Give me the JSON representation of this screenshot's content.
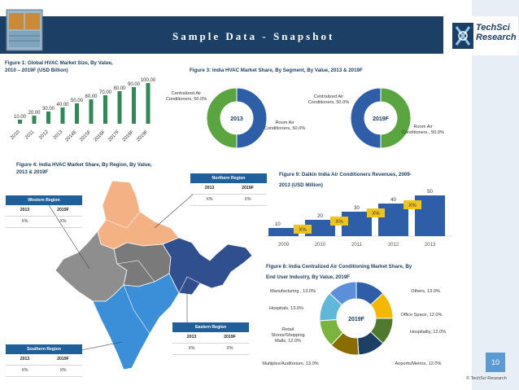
{
  "header": {
    "title": "Sample Data - Snapshot"
  },
  "logo": {
    "line1": "TechSci",
    "line2": "Research"
  },
  "fig1": {
    "title_line1": "Figure 1: Global HVAC Market Size, By Value,",
    "title_line2": "2010 – 2019F (USD Billion)"
  },
  "fig3": {
    "title": "Figure 3: India HVAC Market Share, By Segment, By Value, 2013 & 2019F",
    "pie2013": {
      "center": "2013",
      "label_a": "Centralized Air Conditioners, 50.0%",
      "label_b": "Room Air Conditioners, 50.0%"
    },
    "pie2019": {
      "center": "2019F",
      "label_a": "Centralized Air Conditioners, 50.0%",
      "label_b": "Room Air Conditioners , 50.0%"
    }
  },
  "fig4": {
    "title_line1": "Figure 4: India HVAC Market Share, By Region, By Value,",
    "title_line2": "2013 & 2019F",
    "regions": {
      "northern": {
        "name": "Northern Region",
        "y1": "2013",
        "y2": "2019F",
        "v1": "X%",
        "v2": "X%"
      },
      "western": {
        "name": "Western Region",
        "y1": "2013",
        "y2": "2019F",
        "v1": "X%",
        "v2": "X%"
      },
      "eastern": {
        "name": "Eastern Region",
        "y1": "2013",
        "y2": "2019F",
        "v1": "X%",
        "v2": "X%"
      },
      "southern": {
        "name": "Southern Region",
        "y1": "2013",
        "y2": "2019F",
        "v1": "X%",
        "v2": "X%"
      }
    }
  },
  "fig9": {
    "title_line1": "Figure 9: Daikin India Air Conditioners Revenues, 2009-",
    "title_line2": "2013 (USD Million)"
  },
  "fig8": {
    "title_line1": "Figure 8: India Centralized Air Conditioning Market Share, By",
    "title_line2": "End User Industry, By Value, 2019F",
    "center": "2019F",
    "labels": {
      "manufacturing": "Manufacturing , 13.0%",
      "others": "Others, 13.0%",
      "hospitals": "Hospitals, 13.0%",
      "office": "Office Space, 12.0%",
      "retail": "Retail Stores/Shopping Malls, 12.0%",
      "hospitality": "Hospitality, 12.0%",
      "multiplex": "Multiplex/Auditorium, 13.0%",
      "airports": "Airports/Metros, 12.0%"
    }
  },
  "footer": {
    "page": "10",
    "copyright": "© TechSci Research"
  },
  "chart_data": [
    {
      "type": "bar",
      "title": "Figure 1: Global HVAC Market Size, By Value, 2010 – 2019F (USD Billion)",
      "categories": [
        "2010",
        "2011",
        "2012",
        "2013",
        "2014E",
        "2015F",
        "2016F",
        "2017F",
        "2018F",
        "2019F"
      ],
      "values": [
        10.0,
        20.0,
        30.0,
        40.0,
        50.0,
        60.0,
        70.0,
        80.0,
        90.0,
        100.0
      ],
      "value_labels": [
        "10.00",
        "20.00",
        "30.00",
        "40.00",
        "50.00",
        "60.00",
        "70.00",
        "80.00",
        "90.00",
        "100.00"
      ],
      "ylim": [
        0,
        100
      ],
      "color": "#2e8b57"
    },
    {
      "type": "pie",
      "title": "India HVAC Market Share 2013",
      "labels": [
        "Centralized Air Conditioners",
        "Room Air Conditioners"
      ],
      "values": [
        50.0,
        50.0
      ],
      "colors": [
        "#2f5ea8",
        "#5aa53f"
      ]
    },
    {
      "type": "pie",
      "title": "India HVAC Market Share 2019F",
      "labels": [
        "Centralized Air Conditioners",
        "Room Air Conditioners"
      ],
      "values": [
        50.0,
        50.0
      ],
      "colors": [
        "#2f5ea8",
        "#5aa53f"
      ]
    },
    {
      "type": "bar",
      "title": "Figure 9: Daikin India Air Conditioners Revenues, 2009-2013 (USD Million)",
      "categories": [
        "2009",
        "2010",
        "2011",
        "2012",
        "2013"
      ],
      "values": [
        10,
        20,
        30,
        40,
        50
      ],
      "growth_labels": [
        "X%",
        "X%",
        "X%",
        "X%"
      ],
      "ylim": [
        0,
        50
      ],
      "color": "#2f5ea8",
      "growth_color": "#f0c419"
    },
    {
      "type": "pie",
      "title": "Figure 8: India Centralized Air Conditioning Market Share, By End User Industry, By Value, 2019F",
      "labels": [
        "Others",
        "Office Space",
        "Hospitality",
        "Airports/Metros",
        "Multiplex/Auditorium",
        "Retail Stores/Shopping Malls",
        "Hospitals",
        "Manufacturing"
      ],
      "values": [
        13.0,
        12.0,
        12.0,
        12.0,
        13.0,
        12.0,
        13.0,
        13.0
      ],
      "colors": [
        "#2f5ea8",
        "#f5b800",
        "#4f7a2e",
        "#1c3f66",
        "#8a6d00",
        "#7bb43c",
        "#5fb8d8",
        "#5b8fd9"
      ]
    }
  ]
}
